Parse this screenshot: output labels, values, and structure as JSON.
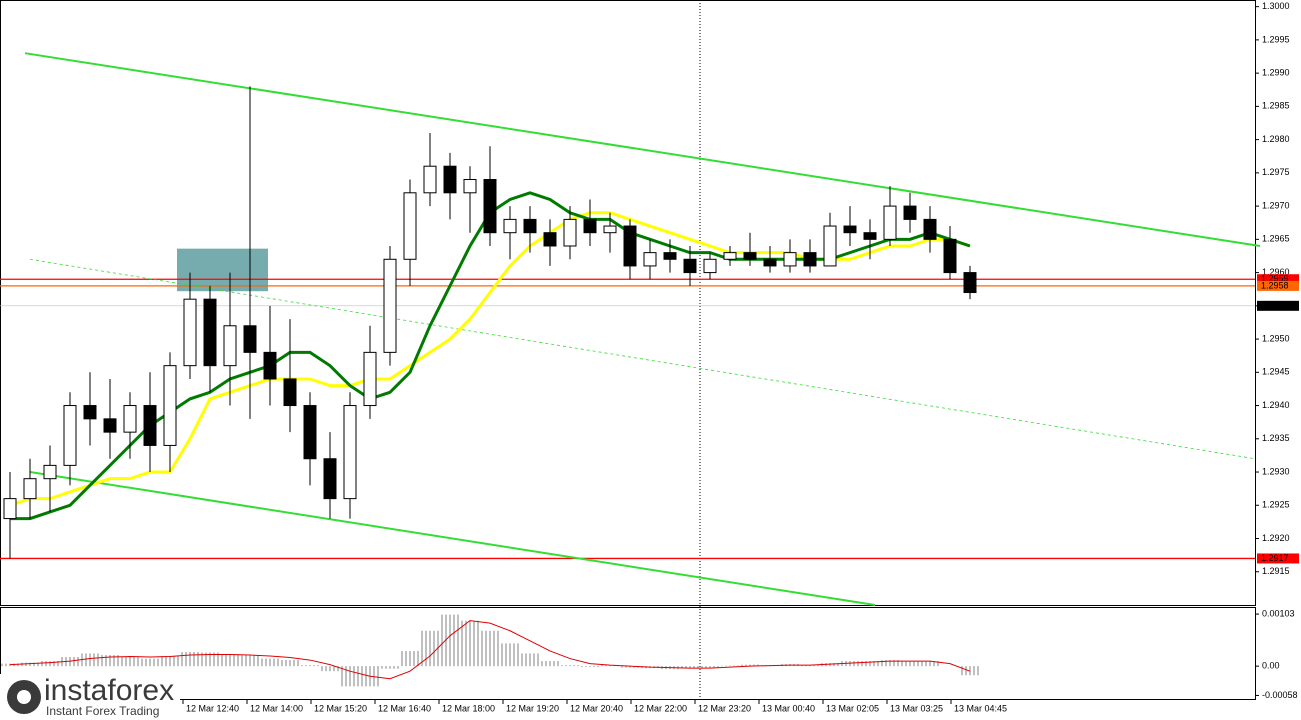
{
  "chart_data": {
    "type": "candlestick",
    "ylim": [
      1.291,
      1.3001
    ],
    "xlim": [
      -0.5,
      62.25
    ],
    "yticks": [
      {
        "value": 1.3,
        "label": "1.3000"
      },
      1.2995,
      {
        "value": 1.299,
        "label": "1.2990"
      },
      1.2985,
      {
        "value": 1.298,
        "label": "1.2980"
      },
      1.2975,
      {
        "value": 1.297,
        "label": "1.2970"
      },
      1.2965,
      {
        "value": 1.296,
        "label": "1.2960"
      },
      1.2955,
      {
        "value": 1.295,
        "label": "1.2950"
      },
      1.2945,
      {
        "value": 1.294,
        "label": "1.2940"
      },
      1.2935,
      {
        "value": 1.293,
        "label": "1.2930"
      },
      1.2925,
      {
        "value": 1.292,
        "label": "1.2920"
      },
      1.2915
    ],
    "xticks": [
      {
        "value": 8.65,
        "label": "12 Mar 12:40"
      },
      {
        "value": 11.85,
        "label": "12 Mar 14:00"
      },
      {
        "value": 15.05,
        "label": "12 Mar 15:20"
      },
      {
        "value": 18.25,
        "label": "12 Mar 16:40"
      },
      {
        "value": 21.45,
        "label": "12 Mar 18:00"
      },
      {
        "value": 24.65,
        "label": "12 Mar 19:20"
      },
      {
        "value": 27.85,
        "label": "12 Mar 20:40"
      },
      {
        "value": 31.05,
        "label": "12 Mar 22:00"
      },
      {
        "value": 34.25,
        "label": "12 Mar 23:20"
      },
      {
        "value": 37.45,
        "label": "13 Mar 00:40"
      },
      {
        "value": 40.65,
        "label": "13 Mar 02:05"
      },
      {
        "value": 43.85,
        "label": "13 Mar 03:25"
      },
      {
        "value": 47.05,
        "label": "13 Mar 04:45"
      }
    ],
    "open": [
      1.2923,
      1.2926,
      1.2929,
      1.2931,
      1.294,
      1.2938,
      1.2936,
      1.294,
      1.2934,
      1.2946,
      1.2956,
      1.2946,
      1.2952,
      1.2948,
      1.2944,
      1.294,
      1.2932,
      1.2926,
      1.294,
      1.2948,
      1.2962,
      1.2972,
      1.2976,
      1.2972,
      1.2974,
      1.2966,
      1.2968,
      1.2966,
      1.2964,
      1.2968,
      1.2966,
      1.2967,
      1.2961,
      1.2963,
      1.2962,
      1.296,
      1.2962,
      1.2963,
      1.2962,
      1.2961,
      1.2963,
      1.2961,
      1.2967,
      1.2966,
      1.2965,
      1.297,
      1.2968,
      1.2965,
      1.296
    ],
    "high": [
      1.293,
      1.2932,
      1.2934,
      1.2942,
      1.2945,
      1.2944,
      1.2942,
      1.2945,
      1.2948,
      1.296,
      1.2958,
      1.296,
      1.2988,
      1.2955,
      1.2953,
      1.2942,
      1.2936,
      1.2942,
      1.2952,
      1.2964,
      1.2974,
      1.2981,
      1.2978,
      1.2976,
      1.2979,
      1.297,
      1.297,
      1.2968,
      1.297,
      1.2971,
      1.2969,
      1.2968,
      1.2965,
      1.2965,
      1.2964,
      1.2963,
      1.2964,
      1.2966,
      1.2964,
      1.2965,
      1.2965,
      1.2969,
      1.297,
      1.2968,
      1.2973,
      1.2972,
      1.297,
      1.2967,
      1.2961
    ],
    "low": [
      1.2917,
      1.2923,
      1.2924,
      1.2928,
      1.2934,
      1.2932,
      1.2932,
      1.293,
      1.293,
      1.2944,
      1.2942,
      1.294,
      1.2938,
      1.294,
      1.2936,
      1.2928,
      1.2923,
      1.2923,
      1.2938,
      1.2946,
      1.2958,
      1.297,
      1.2968,
      1.2966,
      1.2964,
      1.2962,
      1.2963,
      1.2961,
      1.2962,
      1.2964,
      1.2963,
      1.2959,
      1.2959,
      1.296,
      1.2958,
      1.2959,
      1.2961,
      1.2961,
      1.296,
      1.296,
      1.296,
      1.2961,
      1.2964,
      1.2962,
      1.2964,
      1.2966,
      1.2963,
      1.2959,
      1.2956
    ],
    "close": [
      1.2926,
      1.2929,
      1.2931,
      1.294,
      1.2938,
      1.2936,
      1.294,
      1.2934,
      1.2946,
      1.2956,
      1.2946,
      1.2952,
      1.2948,
      1.2944,
      1.294,
      1.2932,
      1.2926,
      1.294,
      1.2948,
      1.2962,
      1.2972,
      1.2976,
      1.2972,
      1.2974,
      1.2966,
      1.2968,
      1.2966,
      1.2964,
      1.2968,
      1.2966,
      1.2967,
      1.2961,
      1.2963,
      1.2962,
      1.296,
      1.2962,
      1.2963,
      1.2962,
      1.2961,
      1.2963,
      1.2961,
      1.2967,
      1.2966,
      1.2965,
      1.297,
      1.2968,
      1.2965,
      1.296,
      1.2957
    ],
    "up_color": "#ffffff",
    "down_color": "#000000",
    "wick_color": "#000000",
    "series": [
      {
        "color": "#ffff00",
        "values": [
          1.2925,
          1.2926,
          1.2926,
          1.2927,
          1.2928,
          1.2929,
          1.2929,
          1.293,
          1.293,
          1.2935,
          1.2941,
          1.2942,
          1.2943,
          1.2944,
          1.2944,
          1.2944,
          1.2943,
          1.2943,
          1.2944,
          1.2944,
          1.2946,
          1.2948,
          1.295,
          1.2953,
          1.2957,
          1.2961,
          1.2964,
          1.2966,
          1.2968,
          1.2969,
          1.2969,
          1.2968,
          1.2967,
          1.2966,
          1.2965,
          1.2964,
          1.2963,
          1.2963,
          1.2963,
          1.2963,
          1.2962,
          1.2962,
          1.2962,
          1.2963,
          1.2964,
          1.2964,
          1.2965,
          1.2965,
          1.2964
        ]
      },
      {
        "color": "#007a00",
        "values": [
          1.2923,
          1.2923,
          1.2924,
          1.2925,
          1.2928,
          1.2931,
          1.2934,
          1.2937,
          1.2939,
          1.2941,
          1.2942,
          1.2944,
          1.2945,
          1.2946,
          1.2948,
          1.2948,
          1.2946,
          1.2943,
          1.2941,
          1.2942,
          1.2945,
          1.2952,
          1.2958,
          1.2964,
          1.2969,
          1.2971,
          1.2972,
          1.2971,
          1.2969,
          1.2968,
          1.2968,
          1.2966,
          1.2965,
          1.2964,
          1.2963,
          1.2963,
          1.2962,
          1.2962,
          1.2962,
          1.2962,
          1.2962,
          1.2962,
          1.2963,
          1.2964,
          1.2965,
          1.2965,
          1.2966,
          1.2965,
          1.2964
        ]
      }
    ],
    "levels": [
      {
        "value": 1.2959,
        "color": "#ff0000"
      },
      {
        "value": 1.2958,
        "color": "#ff6600"
      },
      {
        "value": 1.2917,
        "color": "#ff0000"
      },
      {
        "value": 1.2955,
        "color": "#c0c0c0",
        "label_color": "#000000"
      }
    ],
    "trendlines": [
      {
        "from": [
          0.75,
          1.2993
        ],
        "to": [
          62.5,
          1.2964
        ],
        "color": "#33dd33",
        "dashed": false
      },
      {
        "from": [
          1,
          1.293
        ],
        "to": [
          43.25,
          1.291
        ],
        "color": "#33dd33",
        "dashed": false
      },
      {
        "from": [
          1,
          1.2962
        ],
        "to": [
          62.25,
          1.2932
        ],
        "color": "#33dd33",
        "dashed": true
      }
    ],
    "box": {
      "x": [
        8.35,
        12.9
      ],
      "y": [
        1.29572,
        1.29636
      ],
      "color": "#5f9ea0"
    },
    "vline": 34.5,
    "indicator": {
      "ylim": [
        -0.00067,
        0.00117
      ],
      "yticks": [
        0.00103,
        {
          "value": 0,
          "label": "0.00"
        },
        -0.00058
      ],
      "histogram": {
        "color": "#c0c0c0",
        "values": [
          5e-05,
          7e-05,
          0.0001,
          0.00018,
          0.00025,
          0.00022,
          0.00018,
          0.00015,
          0.0002,
          0.00028,
          0.00027,
          0.00024,
          0.00022,
          0.00015,
          0.00012,
          2e-05,
          -0.0001,
          -0.0004,
          -0.0004,
          -5e-05,
          0.0003,
          0.0007,
          0.00102,
          0.0009,
          0.0007,
          0.00045,
          0.00025,
          0.0001,
          2e-05,
          -2e-05,
          2e-05,
          -3e-05,
          -4e-05,
          -6e-05,
          -5e-05,
          -4e-05,
          1e-05,
          3e-05,
          2e-05,
          4e-05,
          2e-05,
          6e-05,
          0.0001,
          0.0001,
          0.00012,
          0.0001,
          0.0001,
          0,
          -0.00018
        ]
      },
      "signal": {
        "color": "#e00000",
        "values": [
          3e-05,
          5e-05,
          7e-05,
          0.0001,
          0.00015,
          0.00018,
          0.00019,
          0.00018,
          0.00019,
          0.00022,
          0.00023,
          0.00023,
          0.00022,
          0.0002,
          0.00017,
          0.00012,
          3e-05,
          -0.0001,
          -0.0002,
          -0.00025,
          -0.0001,
          0.0002,
          0.0006,
          0.0009,
          0.00085,
          0.0007,
          0.0005,
          0.0003,
          0.00015,
          5e-05,
          2e-05,
          0,
          -2e-05,
          -3e-05,
          -4e-05,
          -4e-05,
          -2e-05,
          0,
          1e-05,
          2e-05,
          2e-05,
          4e-05,
          6e-05,
          8e-05,
          0.0001,
          0.0001,
          0.0001,
          5e-05,
          -0.0001
        ]
      }
    }
  },
  "logo": {
    "name": "instaforex",
    "tagline": "Instant Forex Trading"
  }
}
